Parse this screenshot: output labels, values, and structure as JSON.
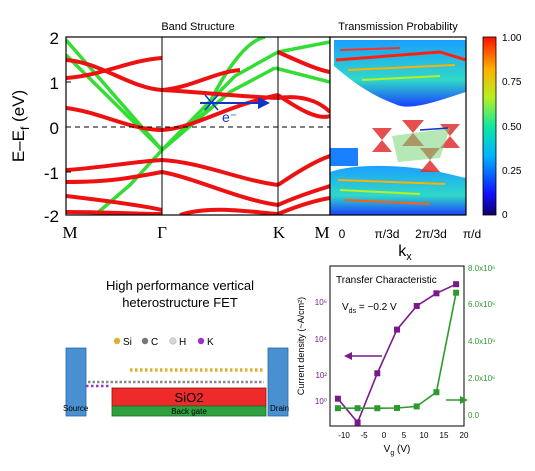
{
  "figure": {
    "band_panel": {
      "title": "Band Structure",
      "ylabel_main": "E–E",
      "ylabel_sub": "f",
      "ylabel_unit": " (eV)",
      "yticks": [
        "2",
        "1",
        "0",
        "-1",
        "-2"
      ],
      "kpoints": [
        "M",
        "Γ",
        "K",
        "M"
      ],
      "electron_label": "e⁻",
      "colors": {
        "band_red": "#ee1111",
        "band_green": "#33dd33",
        "arrow_blue": "#1133cc"
      }
    },
    "transmission_panel": {
      "title": "Transmission Probability",
      "xticks": [
        "0",
        "π/3d",
        "2π/3d",
        "π/d"
      ],
      "xlabel_main": "k",
      "xlabel_sub": "x",
      "colorbar_ticks": [
        "1.00",
        "0.75",
        "0.50",
        "0.25",
        "0"
      ]
    },
    "device_panel": {
      "title_line1": "High performance vertical",
      "title_line2": "heterostructure FET",
      "legend": [
        {
          "label": "Si",
          "color": "#e0b030"
        },
        {
          "label": "C",
          "color": "#777777"
        },
        {
          "label": "H",
          "color": "#d8d8d8"
        },
        {
          "label": "K",
          "color": "#9933cc"
        }
      ],
      "source_label": "Source",
      "drain_label": "Drain",
      "oxide_label": "SiO2",
      "gate_label": "Back gate",
      "colors": {
        "electrode": "#4a8fd0",
        "oxide": "#ee2a2a",
        "gate": "#2fa040"
      }
    },
    "transfer_panel": {
      "title": "Transfer Characteristic",
      "vds_label": "V",
      "vds_sub": "ds",
      "vds_value": " = −0.2 V",
      "left_ticks": [
        "10⁶",
        "10⁴",
        "10²",
        "10⁰"
      ],
      "right_ticks": [
        "8.0x10⁶",
        "6.0x10⁶",
        "4.0x10⁶",
        "2.0x10⁶",
        "0.0"
      ],
      "xticks": [
        "-10",
        "-5",
        "0",
        "5",
        "10",
        "15",
        "20"
      ],
      "xlabel_main": "V",
      "xlabel_sub": "g",
      "xlabel_unit": " (V)",
      "ylabel": "Current density (~A/cm²)"
    }
  },
  "chart_data": {
    "type": "line",
    "title": "Transfer Characteristic",
    "xlabel": "Vg (V)",
    "ylabel": "Current density (~A/cm²)",
    "x": [
      -10,
      -5,
      0,
      5,
      10,
      15,
      20
    ],
    "xlim": [
      -12,
      22
    ],
    "series": [
      {
        "axis": "left",
        "scale": "log",
        "ylim_log10": [
          -1.3,
          7.5
        ],
        "color": "#7a1a8a",
        "values_log10": [
          0.2,
          -1.1,
          1.6,
          4.0,
          5.3,
          6.0,
          6.5
        ]
      },
      {
        "axis": "right",
        "scale": "linear",
        "ylim": [
          -1000000,
          8000000
        ],
        "color": "#2e9a2e",
        "values": [
          0,
          0,
          0,
          10000,
          100000,
          900000,
          6500000
        ]
      }
    ]
  }
}
